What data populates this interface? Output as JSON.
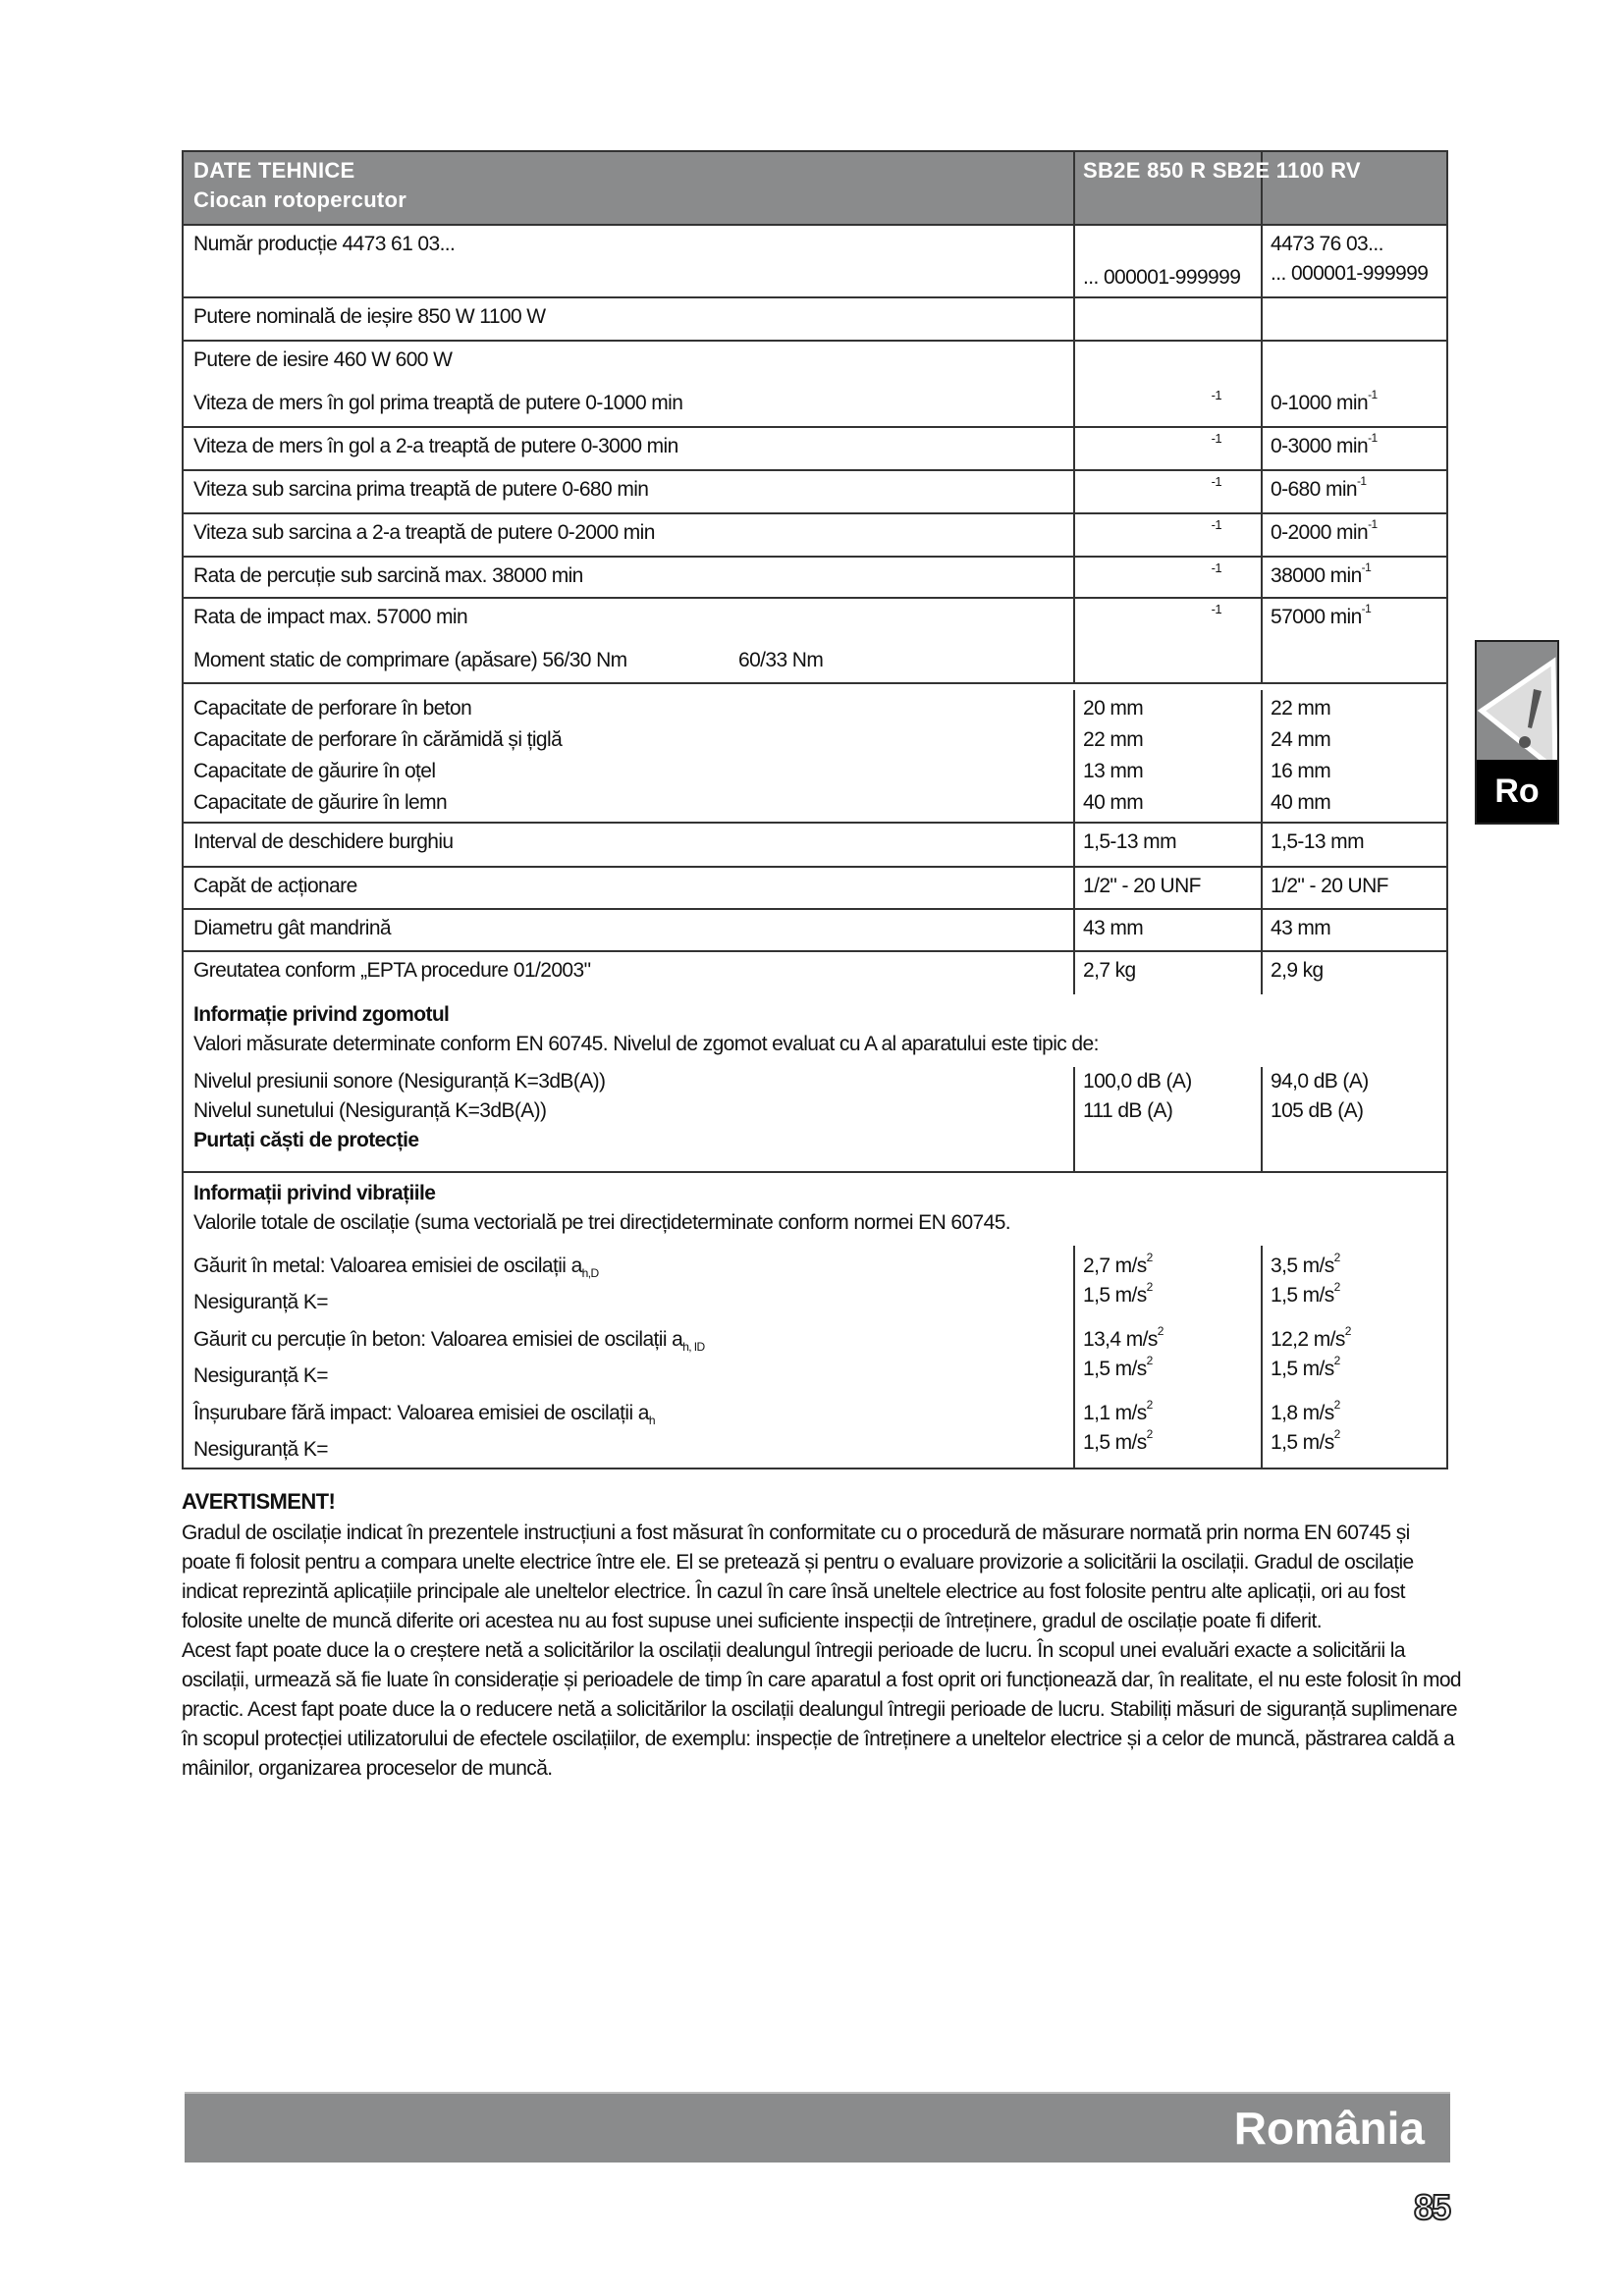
{
  "table": {
    "title": "DATE TEHNICE",
    "subtitle": "Ciocan rotopercutor",
    "models": "SB2E 850 R SB2E 1100 RV",
    "production": {
      "label": "Număr producție 4473 61 03...",
      "c2": "... 000001-999999",
      "c3a": "4473 76 03...",
      "c3b": "... 000001-999999"
    },
    "simple": [
      {
        "label": "Putere nominală de ieșire 850 W 1100 W",
        "c2": "",
        "c3": ""
      },
      {
        "label": "Putere de iesire 460 W 600 W",
        "c2": "",
        "c3": ""
      }
    ],
    "speeds": [
      {
        "label": "Viteza de mers în gol prima treaptă de putere 0-1000 min",
        "sup": "-1",
        "c3": "0-1000 min",
        "c3sup": "-1"
      },
      {
        "label": "Viteza de mers în gol a 2-a treaptă de putere 0-3000 min",
        "sup": "-1",
        "c3": "0-3000 min",
        "c3sup": "-1"
      },
      {
        "label": "Viteza sub sarcina prima treaptă de putere 0-680 min",
        "sup": "-1",
        "c3": "0-680 min",
        "c3sup": "-1"
      },
      {
        "label": "Viteza sub sarcina a 2-a treaptă de putere 0-2000 min",
        "sup": "-1",
        "c3": "0-2000 min",
        "c3sup": "-1"
      },
      {
        "label": "Rata de percuție sub sarcină max. 38000 min",
        "sup": "-1",
        "c3": "38000 min",
        "c3sup": "-1"
      },
      {
        "label": "Rata de impact max. 57000 min",
        "sup": "-1",
        "c3": "57000 min",
        "c3sup": "-1"
      }
    ],
    "moment": {
      "label": "Moment static de comprimare (apăsare) 56/30 Nm",
      "extra": "60/33 Nm"
    },
    "capacity": [
      {
        "label": "Capacitate de perforare în beton",
        "c2": "20 mm",
        "c3": "22 mm"
      },
      {
        "label": "Capacitate de perforare în cărămidă și țiglă",
        "c2": "22 mm",
        "c3": "24 mm"
      },
      {
        "label": "Capacitate de găurire în oțel",
        "c2": "13 mm",
        "c3": "16 mm"
      },
      {
        "label": "Capacitate de găurire în lemn",
        "c2": "40 mm",
        "c3": "40 mm"
      }
    ],
    "misc": [
      {
        "label": "Interval de deschidere burghiu",
        "c2": "1,5-13 mm",
        "c3": "1,5-13 mm"
      },
      {
        "label": "Capăt de acționare",
        "c2": "1/2\" - 20 UNF",
        "c3": "1/2\" - 20 UNF"
      },
      {
        "label": "Diametru gât mandrină",
        "c2": "43 mm",
        "c3": "43 mm"
      },
      {
        "label": "Greutatea conform „EPTA procedure 01/2003\"",
        "c2": "2,7 kg",
        "c3": "2,9 kg"
      }
    ],
    "noise": {
      "title": "Informație privind zgomotul",
      "desc": "Valori măsurate determinate conform EN 60745. Nivelul de zgomot evaluat cu A al aparatului este tipic de:",
      "l1": "Nivelul presiunii sonore  (Nesiguranță K=3dB(A))",
      "l2": "Nivelul  sunetului (Nesiguranță K=3dB(A))",
      "l3": "Purtați căști de protecție",
      "c2a": "100,0 dB (A)",
      "c2b": "111 dB (A)",
      "c3a": "94,0 dB (A)",
      "c3b": "105 dB (A)"
    },
    "vib": {
      "title": "Informații privind vibrațiile",
      "desc": "Valorile totale de oscilație (suma vectorială pe trei direcțideterminate conform normei EN 60745.",
      "items": [
        {
          "label": "Găurit în metal: Valoarea emisiei de oscilații a",
          "sub": "h,D",
          "k": "Nesiguranță K=",
          "c2": "2,7 m/s",
          "c2k": "1,5 m/s",
          "c3": "3,5 m/s",
          "c3k": "1,5 m/s"
        },
        {
          "label": "Găurit cu percuție în beton: Valoarea emisiei de oscilații a",
          "sub": "h, ID",
          "k": "Nesiguranță K=",
          "c2": "13,4 m/s",
          "c2k": "1,5 m/s",
          "c3": "12,2 m/s",
          "c3k": "1,5 m/s"
        },
        {
          "label": "Înșurubare fără impact: Valoarea emisiei de oscilații a",
          "sub": "h",
          "k": "Nesiguranță K=",
          "c2": "1,1 m/s",
          "c2k": "1,5 m/s",
          "c3": "1,8 m/s",
          "c3k": "1,5 m/s"
        }
      ],
      "sq": "2"
    }
  },
  "side_tab": {
    "label": "Ro",
    "icon": "warning-triangle-icon"
  },
  "warning": {
    "title": "AVERTISMENT!",
    "text": "Gradul de oscilație indicat în prezentele instrucțiuni a fost măsurat în conformitate cu o procedură de măsurare normată prin norma EN 60745 și poate fi folosit pentru a compara unelte electrice între ele. El se pretează și pentru o evaluare provizorie a solicitării la oscilații. Gradul de oscilație indicat reprezintă aplicațiile principale ale uneltelor electrice. În cazul în care însă uneltele electrice au fost folosite pentru alte aplicații, ori au fost folosite unelte de muncă diferite ori acestea nu au fost supuse unei suficiente inspecții de întreținere, gradul de oscilație poate fi diferit.",
    "text2": "Acest fapt poate duce la o creștere netă a solicitărilor la oscilații dealungul întregii perioade de lucru. În scopul unei evaluări exacte a solicitării la oscilații, urmează să fie luate în considerație și perioadele de timp în care aparatul a fost oprit ori funcționează dar, în realitate, el nu este folosit în mod practic. Acest fapt poate duce la o reducere netă a solicitărilor la oscilații dealungul întregii perioade de lucru. Stabiliți măsuri de siguranță suplimenare în scopul protecției utilizatorului de efectele oscilațiilor, de exemplu: inspecție de întreținere a uneltelor electrice și a celor de muncă, păstrarea caldă a mâinilor, organizarea proceselor de muncă."
  },
  "footer": {
    "country": "România",
    "page": "85"
  },
  "colors": {
    "header_gray": "#8a8b8c",
    "tab_black": "#000000"
  }
}
